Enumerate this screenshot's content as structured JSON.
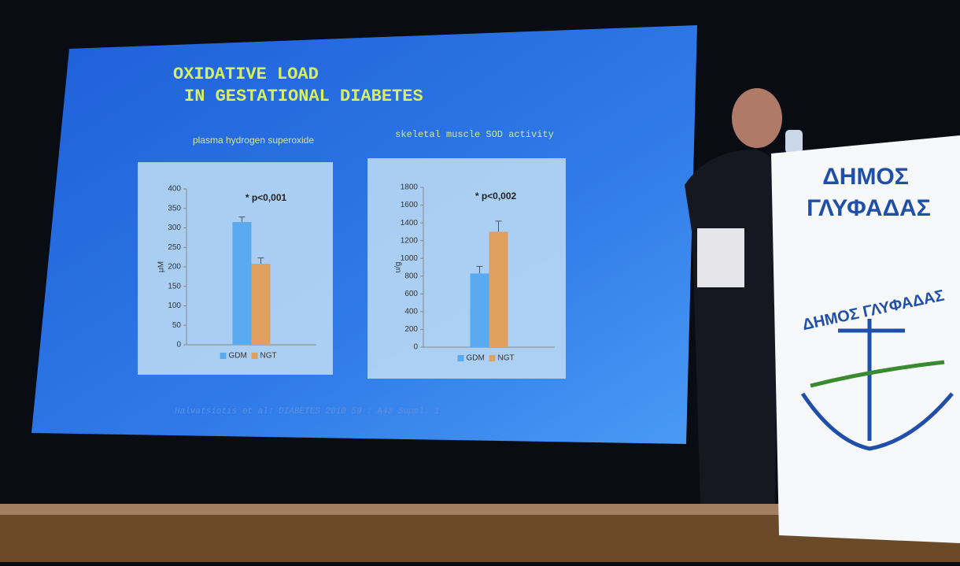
{
  "slide": {
    "title_lines": [
      "OXIDATIVE LOAD",
      "IN GESTATIONAL DIABETES"
    ],
    "citation": "Halvatsiotis et al: DIABETES 2010   59 : A43   Suppl. 1"
  },
  "podium": {
    "lines": [
      "ΔΗΜΟΣ",
      "ΓΛΥΦΑΔΑΣ"
    ],
    "logo_text": "ΔΗΜΟΣ ΓΛΥΦΑΔΑΣ"
  },
  "chart_data": [
    {
      "type": "bar",
      "title": "plasma hydrogen superoxide",
      "annotation": "* p<0,001",
      "y_label": "μM",
      "categories": [
        null
      ],
      "series": [
        {
          "name": "GDM",
          "color": "#5aaaf0",
          "values": [
            315
          ],
          "errors": [
            13
          ]
        },
        {
          "name": "NGT",
          "color": "#e0a060",
          "values": [
            208
          ],
          "errors": [
            15
          ]
        }
      ],
      "ylim": [
        0,
        400
      ],
      "yticks": [
        0,
        50,
        100,
        150,
        200,
        250,
        300,
        350,
        400
      ],
      "legend": "bottom"
    },
    {
      "type": "bar",
      "title": "skeletal muscle SOD activity",
      "annotation": "* p<0,002",
      "y_label": "u/g",
      "categories": [
        null
      ],
      "series": [
        {
          "name": "GDM",
          "color": "#5aaaf0",
          "values": [
            830
          ],
          "errors": [
            80
          ]
        },
        {
          "name": "NGT",
          "color": "#e0a060",
          "values": [
            1300
          ],
          "errors": [
            120
          ]
        }
      ],
      "ylim": [
        0,
        1800
      ],
      "yticks": [
        0,
        200,
        400,
        600,
        800,
        1000,
        1200,
        1400,
        1600,
        1800
      ],
      "legend": "bottom"
    }
  ]
}
